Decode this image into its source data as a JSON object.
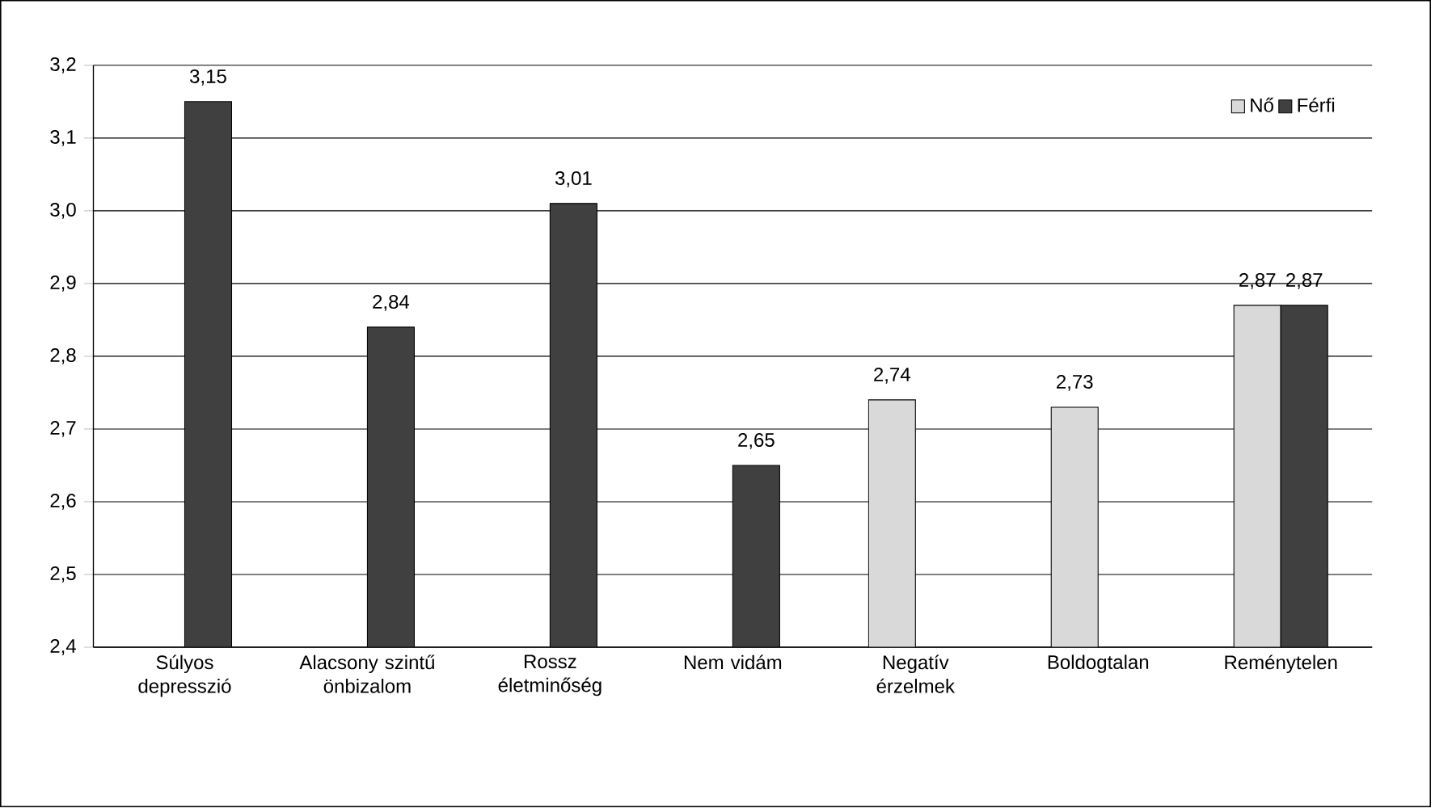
{
  "chart_data": {
    "type": "bar",
    "categories": [
      "Súlyos depresszió",
      "Alacsony szintű önbizalom",
      "Rossz életminőség",
      "Nem vidám",
      "Negatív érzelmek",
      "Boldogtalan",
      "Reménytelen"
    ],
    "series": [
      {
        "name": "Nő",
        "color": "#d9d9d9",
        "values": [
          null,
          null,
          null,
          null,
          2.74,
          2.73,
          2.87
        ],
        "value_labels": [
          null,
          null,
          null,
          null,
          "2,74",
          "2,73",
          "2,87"
        ]
      },
      {
        "name": "Férfi",
        "color": "#404040",
        "values": [
          3.15,
          2.84,
          3.01,
          2.65,
          null,
          null,
          2.87
        ],
        "value_labels": [
          "3,15",
          "2,84",
          "3,01",
          "2,65",
          null,
          null,
          "2,87"
        ]
      }
    ],
    "ylim": [
      2.4,
      3.2
    ],
    "yticks": [
      {
        "value": 2.4,
        "label": "2,4"
      },
      {
        "value": 2.5,
        "label": "2,5"
      },
      {
        "value": 2.6,
        "label": "2,6"
      },
      {
        "value": 2.7,
        "label": "2,7"
      },
      {
        "value": 2.8,
        "label": "2,8"
      },
      {
        "value": 2.9,
        "label": "2,9"
      },
      {
        "value": 3.0,
        "label": "3,0"
      },
      {
        "value": 3.1,
        "label": "3,1"
      },
      {
        "value": 3.2,
        "label": "3,2"
      }
    ],
    "grid": "y",
    "legend": "top right"
  }
}
